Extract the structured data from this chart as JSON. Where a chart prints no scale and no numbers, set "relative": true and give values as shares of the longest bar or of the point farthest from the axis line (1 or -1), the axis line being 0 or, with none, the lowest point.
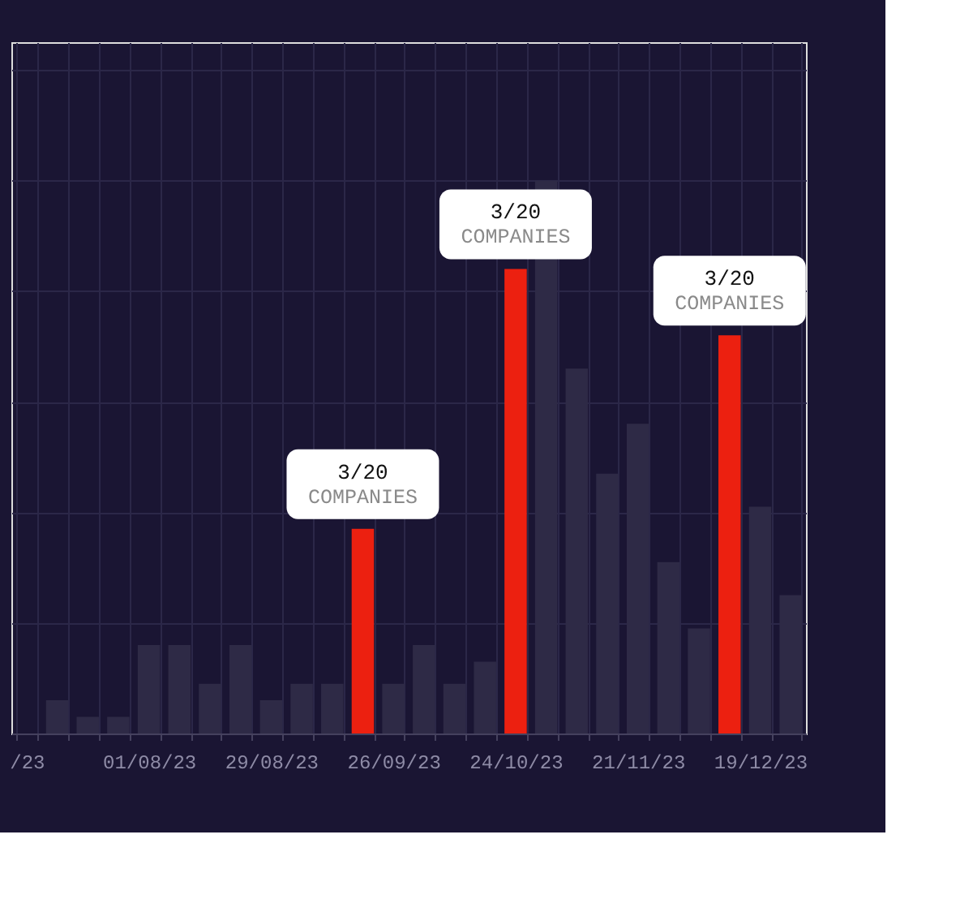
{
  "chart_data": {
    "type": "bar",
    "relative": true,
    "grid": true,
    "categories": [
      "/23",
      null,
      null,
      null,
      "01/08/23",
      null,
      null,
      null,
      "29/08/23",
      null,
      null,
      null,
      "26/09/23",
      null,
      null,
      null,
      "24/10/23",
      null,
      null,
      null,
      "21/11/23",
      null,
      null,
      null,
      "19/12/23",
      null
    ],
    "values": [
      null,
      0.06,
      0.03,
      0.03,
      0.16,
      0.16,
      0.09,
      0.16,
      0.06,
      0.09,
      0.09,
      0.37,
      0.09,
      0.16,
      0.09,
      0.13,
      0.84,
      1,
      0.66,
      0.47,
      0.56,
      0.31,
      0.19,
      0.72,
      0.41,
      0.25
    ],
    "colors": [
      "#2e2a46",
      "#2e2a46",
      "#2e2a46",
      "#2e2a46",
      "#2e2a46",
      "#2e2a46",
      "#2e2a46",
      "#2e2a46",
      "#2e2a46",
      "#2e2a46",
      "#2e2a46",
      "#ec2010",
      "#2e2a46",
      "#2e2a46",
      "#2e2a46",
      "#2e2a46",
      "#ec2010",
      "#2e2a46",
      "#2e2a46",
      "#2e2a46",
      "#2e2a46",
      "#2e2a46",
      "#2e2a46",
      "#ec2010",
      "#2e2a46",
      "#2e2a46"
    ],
    "annotations": [
      {
        "text": "3/20",
        "y": 0.37
      },
      {
        "text": "COMPANIES",
        "y": 0.37
      },
      {
        "text": "3/20",
        "x": "24/10/23",
        "y": 0.84
      },
      {
        "text": "COMPANIES",
        "x": "24/10/23",
        "y": 0.84
      },
      {
        "text": "3/20",
        "y": 0.72
      },
      {
        "text": "COMPANIES",
        "y": 0.72
      }
    ]
  }
}
